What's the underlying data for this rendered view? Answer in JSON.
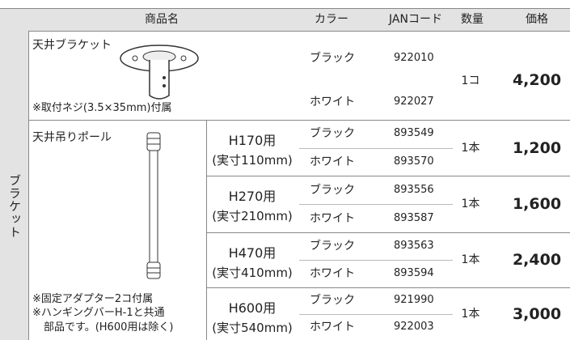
{
  "header": {
    "columns": [
      "商品名",
      "カラー",
      "JANコード",
      "数量",
      "価格"
    ]
  },
  "category": "ブラケット",
  "products": [
    {
      "name": "天井ブラケット",
      "note": "※取付ネジ(3.5×35mm)付属",
      "colors": [
        {
          "color": "ブラック",
          "jan": "922010"
        },
        {
          "color": "ホワイト",
          "jan": "922027"
        }
      ],
      "qty": "1コ",
      "price": "4,200"
    },
    {
      "name": "天井吊りポール",
      "notes": [
        "※固定アダプター2コ付属",
        "※ハンギングバーH-1と共通",
        "部品です。(H600用は除く)"
      ],
      "sizes": [
        {
          "label": "H170用",
          "actual": "(実寸110mm)",
          "colors": [
            {
              "color": "ブラック",
              "jan": "893549"
            },
            {
              "color": "ホワイト",
              "jan": "893570"
            }
          ],
          "qty": "1本",
          "price": "1,200"
        },
        {
          "label": "H270用",
          "actual": "(実寸210mm)",
          "colors": [
            {
              "color": "ブラック",
              "jan": "893556"
            },
            {
              "color": "ホワイト",
              "jan": "893587"
            }
          ],
          "qty": "1本",
          "price": "1,600"
        },
        {
          "label": "H470用",
          "actual": "(実寸410mm)",
          "colors": [
            {
              "color": "ブラック",
              "jan": "893563"
            },
            {
              "color": "ホワイト",
              "jan": "893594"
            }
          ],
          "qty": "1本",
          "price": "2,400"
        },
        {
          "label": "H600用",
          "actual": "(実寸540mm)",
          "colors": [
            {
              "color": "ブラック",
              "jan": "921990"
            },
            {
              "color": "ホワイト",
              "jan": "922003"
            }
          ],
          "qty": "1本",
          "price": "3,000"
        }
      ]
    }
  ]
}
